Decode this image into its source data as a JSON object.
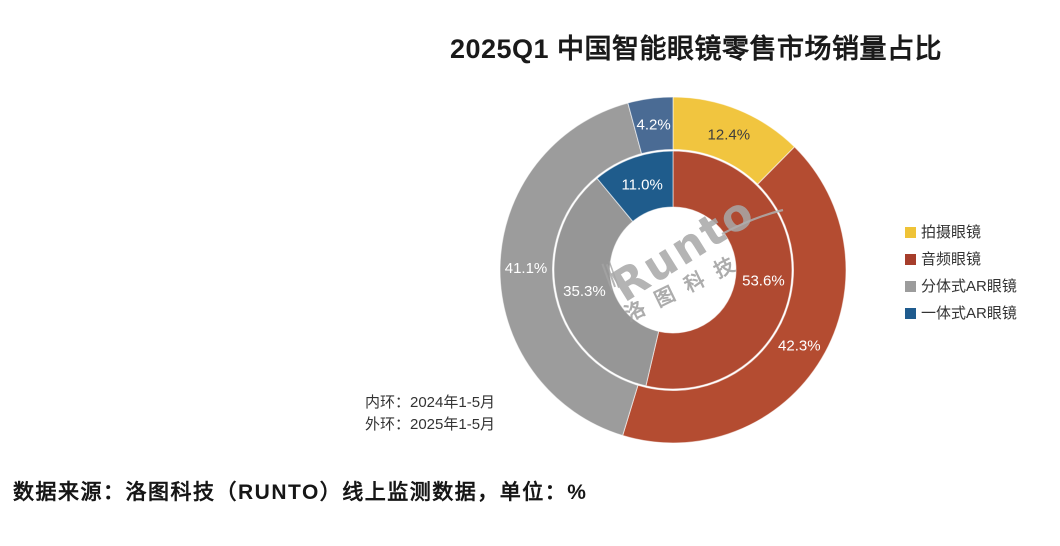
{
  "title": "2025Q1 中国智能眼镜零售市场销量占比",
  "source_note": "数据来源：洛图科技（RUNTO）线上监测数据，单位：%",
  "ring_note": {
    "inner": "内环：2024年1-5月",
    "outer": "外环：2025年1-5月"
  },
  "watermark": {
    "logo_text": "Runto",
    "cn_text": "洛图科技"
  },
  "legend": {
    "position": "right",
    "items": [
      {
        "key": "camera-glasses",
        "label": "拍摄眼镜",
        "color": "#EFC337"
      },
      {
        "key": "audio-glasses",
        "label": "音频眼镜",
        "color": "#A63D2B"
      },
      {
        "key": "split-ar-glasses",
        "label": "分体式AR眼镜",
        "color": "#9C9C9C"
      },
      {
        "key": "all-in-one-ar-glasses",
        "label": "一体式AR眼镜",
        "color": "#1F5B8E"
      }
    ]
  },
  "chart_data": {
    "type": "pie",
    "subtype": "nested-donut",
    "title": "2025Q1 中国智能眼镜零售市场销量占比",
    "unit": "%",
    "start_angle_deg": 0,
    "clockwise": true,
    "categories": [
      "拍摄眼镜",
      "音频眼镜",
      "分体式AR眼镜",
      "一体式AR眼镜"
    ],
    "rings": [
      {
        "name": "内环",
        "period": "2024年1-5月",
        "segments": [
          {
            "key": "audio-glasses",
            "category": "音频眼镜",
            "value": 53.6,
            "color": "#B04A31",
            "label_color": "#FFFFFF"
          },
          {
            "key": "split-ar-glasses",
            "category": "分体式AR眼镜",
            "value": 35.3,
            "color": "#969696",
            "label_color": "#FFFFFF"
          },
          {
            "key": "all-in-one-ar-glasses",
            "category": "一体式AR眼镜",
            "value": 11.0,
            "color": "#1F5C8C",
            "label_color": "#FFFFFF"
          }
        ]
      },
      {
        "name": "外环",
        "period": "2025年1-5月",
        "segments": [
          {
            "key": "camera-glasses",
            "category": "拍摄眼镜",
            "value": 12.4,
            "color": "#F1C53F",
            "label_color": "#3D3D3D"
          },
          {
            "key": "audio-glasses",
            "category": "音频眼镜",
            "value": 42.3,
            "color": "#B44C31",
            "label_color": "#FFFFFF"
          },
          {
            "key": "split-ar-glasses",
            "category": "分体式AR眼镜",
            "value": 41.1,
            "color": "#9C9C9C",
            "label_color": "#FFFFFF"
          },
          {
            "key": "all-in-one-ar-glasses",
            "category": "一体式AR眼镜",
            "value": 4.2,
            "color": "#4A6B94",
            "label_color": "#FFFFFF"
          }
        ]
      }
    ]
  }
}
